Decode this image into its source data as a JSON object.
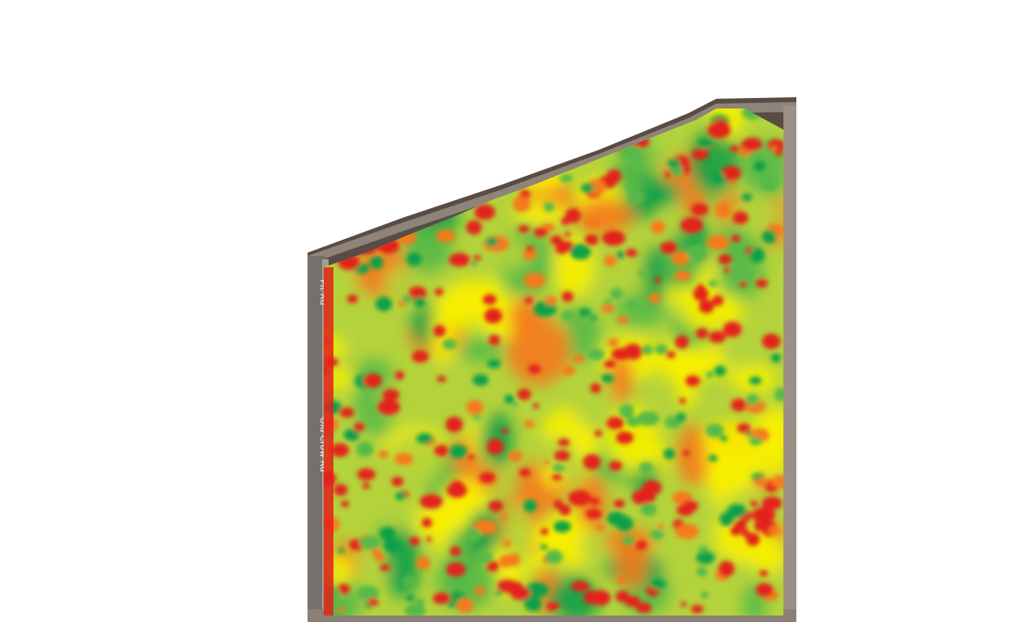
{
  "map": {
    "road_labels": [
      {
        "id": "west-road-label-1",
        "text": "Pit Rd"
      },
      {
        "id": "west-road-label-2",
        "text": "Old Crow Rd"
      }
    ],
    "legend_scale_colors": [
      "#e3201b",
      "#f47a1f",
      "#f8f000",
      "#b4d33c",
      "#57b948",
      "#10a04a"
    ],
    "imagery_colors": {
      "road": "#8c8378",
      "road_edge": "#6e6259",
      "soil": "#4a3c35",
      "background": "#ffffff"
    }
  }
}
